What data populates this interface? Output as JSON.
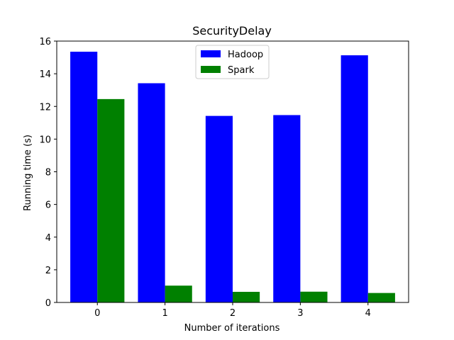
{
  "chart_data": {
    "type": "bar",
    "title": "SecurityDelay",
    "xlabel": "Number of iterations",
    "ylabel": "Running time (s)",
    "categories": [
      "0",
      "1",
      "2",
      "3",
      "4"
    ],
    "series": [
      {
        "name": "Hadoop",
        "color": "#0000ff",
        "values": [
          15.35,
          13.42,
          11.42,
          11.47,
          15.13
        ]
      },
      {
        "name": "Spark",
        "color": "#008000",
        "values": [
          12.45,
          1.03,
          0.65,
          0.66,
          0.58
        ]
      }
    ],
    "ylim": [
      0,
      16
    ],
    "yticks": [
      "0",
      "2",
      "4",
      "6",
      "8",
      "10",
      "12",
      "14",
      "16"
    ],
    "legend": "top-center",
    "grid": false
  }
}
